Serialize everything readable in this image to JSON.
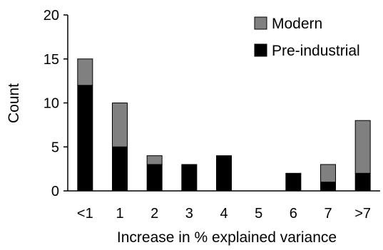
{
  "chart_data": {
    "type": "bar",
    "stacked": true,
    "title": "",
    "xlabel": "Increase in % explained variance",
    "ylabel": "Count",
    "ylim": [
      0,
      20
    ],
    "yticks": [
      0,
      5,
      10,
      15,
      20
    ],
    "grid": false,
    "legend_position": "top-right",
    "categories": [
      "<1",
      "1",
      "2",
      "3",
      "4",
      "5",
      "6",
      "7",
      ">7"
    ],
    "series": [
      {
        "name": "Pre-industrial",
        "color": "#000000",
        "values": [
          12,
          5,
          3,
          3,
          4,
          0,
          2,
          1,
          2
        ]
      },
      {
        "name": "Modern",
        "color": "#808080",
        "values": [
          3,
          5,
          1,
          0,
          0,
          0,
          0,
          2,
          6
        ]
      }
    ],
    "legend_order": [
      "Modern",
      "Pre-industrial"
    ]
  }
}
